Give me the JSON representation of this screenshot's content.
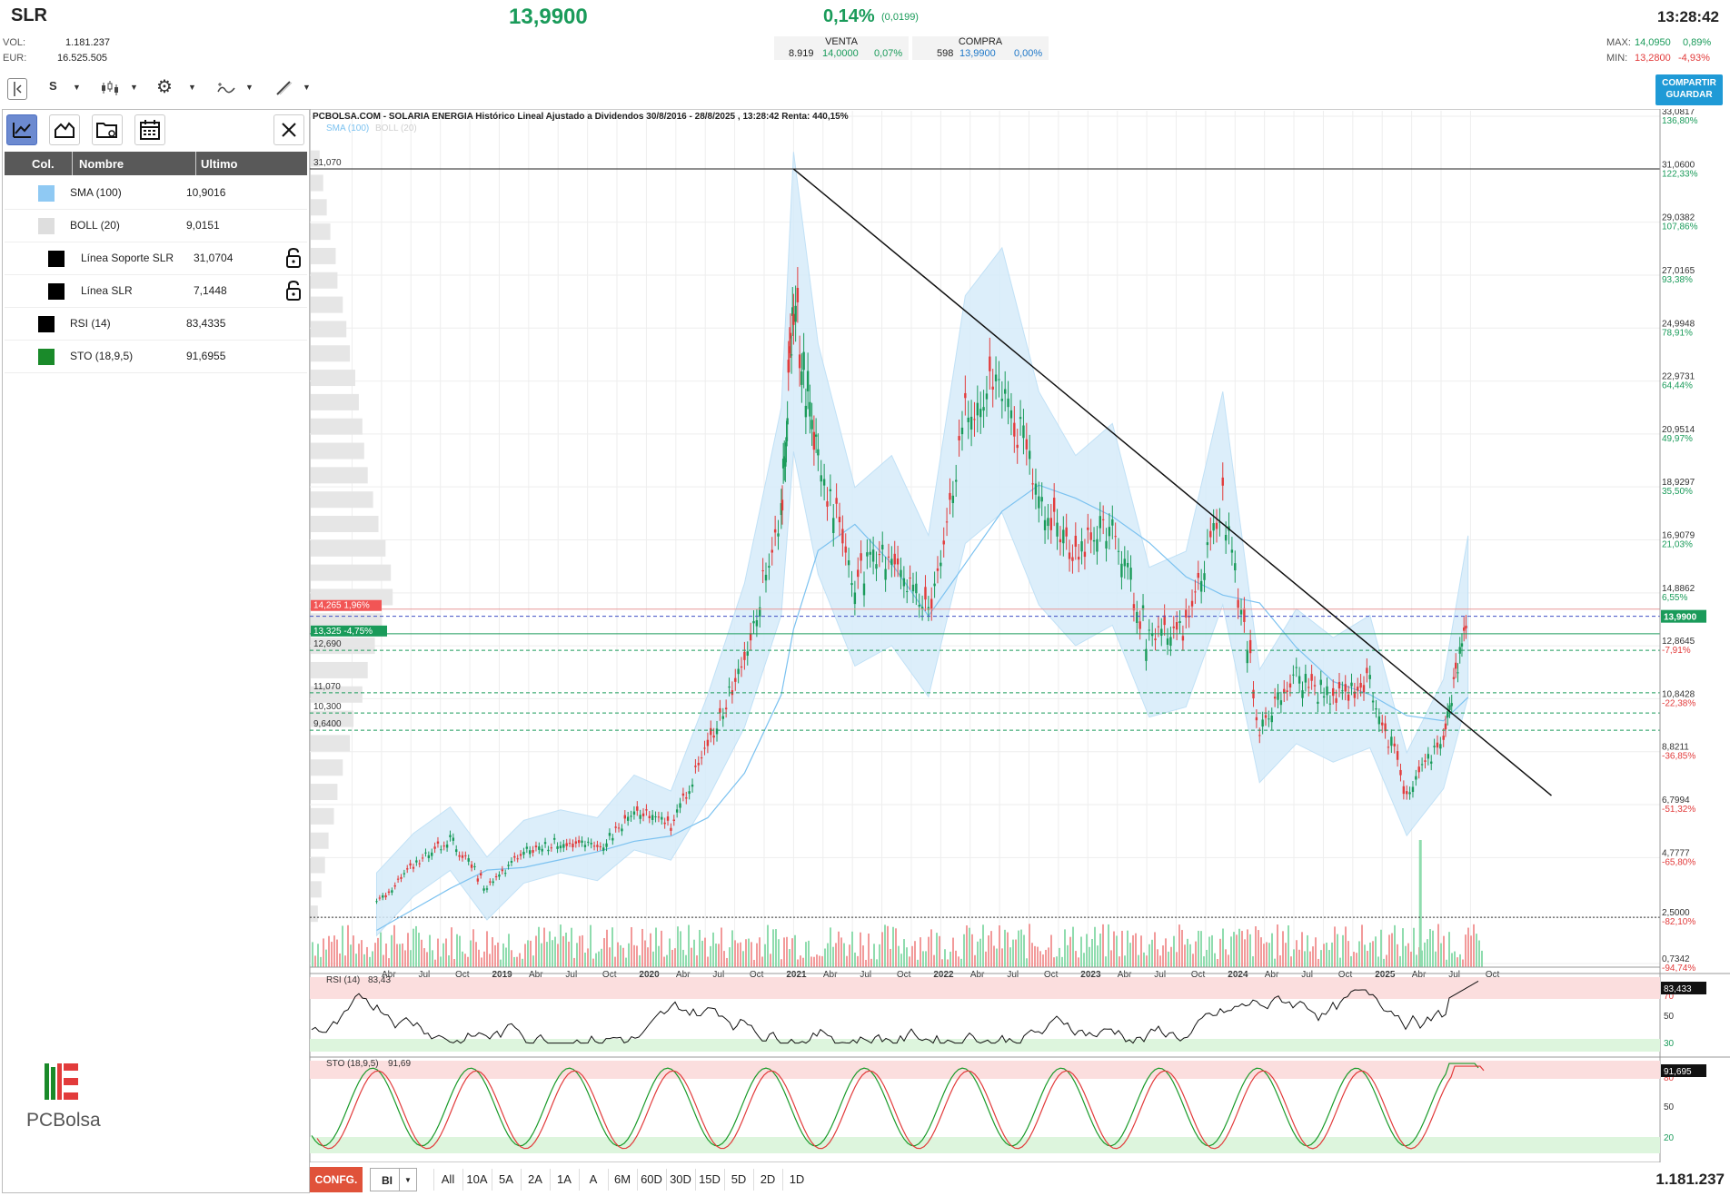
{
  "header": {
    "ticker": "SLR",
    "vol_label": "VOL:",
    "vol_value": "1.181.237",
    "eur_label": "EUR:",
    "eur_value": "16.525.505",
    "price": "13,9900",
    "change_pct": "0,14%",
    "change_abs": "(0,0199)",
    "clock": "13:28:42",
    "sell": {
      "title": "VENTA",
      "qty": "8.919",
      "price": "14,0000",
      "pct": "0,07%"
    },
    "buy": {
      "title": "COMPRA",
      "qty": "598",
      "price": "13,9900",
      "pct": "0,00%"
    },
    "max_label": "MAX:",
    "max_value": "14,0950",
    "max_pct": "0,89%",
    "min_label": "MIN:",
    "min_value": "13,2800",
    "min_pct": "-4,93%"
  },
  "toolbar": {
    "series_label": "S",
    "share_line1": "COMPARTIR",
    "share_line2": "GUARDAR"
  },
  "sidebar": {
    "columns": [
      "Col.",
      "Nombre",
      "Ultimo"
    ],
    "rows": [
      {
        "name": "SMA (100)",
        "value": "10,9016",
        "color": "#8fc9f3",
        "locked": false,
        "indent": false
      },
      {
        "name": "BOLL (20)",
        "value": "9,0151",
        "color": "#dedede",
        "locked": false,
        "indent": false
      },
      {
        "name": "Línea Soporte SLR",
        "value": "31,0704",
        "color": "#000000",
        "locked": true,
        "indent": true
      },
      {
        "name": "Línea SLR",
        "value": "7,1448",
        "color": "#000000",
        "locked": true,
        "indent": true
      },
      {
        "name": "RSI (14)",
        "value": "83,4335",
        "color": "#000000",
        "locked": false,
        "indent": false
      },
      {
        "name": "STO (18,9,5)",
        "value": "91,6955",
        "color": "#1a8a2a",
        "locked": false,
        "indent": false
      }
    ],
    "logo_text": "PCBolsa"
  },
  "chart": {
    "title": "PCBOLSA.COM - SOLARIA ENERGIA Histórico Lineal Ajustado a Dividendos 30/8/2016 - 28/8/2025 , 13:28:42 Renta: 440,15%",
    "legend": [
      "SMA (100)",
      "BOLL (20)"
    ],
    "hlines": {
      "line_31": "31,070",
      "red_band": "14,265  1,96%",
      "green_band": "13,325  -4,75%",
      "l_12690": "12,690",
      "l_11070": "11,070",
      "l_10300": "10,300",
      "l_9640": "9,6400",
      "current": "13,9900"
    },
    "price_axis": [
      {
        "v": "33,0817",
        "p": "136,80%"
      },
      {
        "v": "31,0600",
        "p": "122,33%"
      },
      {
        "v": "29,0382",
        "p": "107,86%"
      },
      {
        "v": "27,0165",
        "p": "93,38%"
      },
      {
        "v": "24,9948",
        "p": "78,91%"
      },
      {
        "v": "22,9731",
        "p": "64,44%"
      },
      {
        "v": "20,9514",
        "p": "49,97%"
      },
      {
        "v": "18,9297",
        "p": "35,50%"
      },
      {
        "v": "16,9079",
        "p": "21,03%"
      },
      {
        "v": "14,8862",
        "p": "6,55%"
      },
      {
        "v": "12,8645",
        "p": "-7,91%"
      },
      {
        "v": "10,8428",
        "p": "-22,38%"
      },
      {
        "v": "8,8211",
        "p": "-36,85%"
      },
      {
        "v": "6,7994",
        "p": "-51,32%"
      },
      {
        "v": "4,7777",
        "p": "-65,80%"
      },
      {
        "v": "2,5000",
        "p": "-82,10%"
      },
      {
        "v": "0,7342",
        "p": "-94,74%"
      }
    ],
    "x_axis": [
      "Abr",
      "Jul",
      "Oct",
      "2019",
      "Abr",
      "Jul",
      "Oct",
      "2020",
      "Abr",
      "Jul",
      "Oct",
      "2021",
      "Abr",
      "Jul",
      "Oct",
      "2022",
      "Abr",
      "Jul",
      "Oct",
      "2023",
      "Abr",
      "Jul",
      "Oct",
      "2024",
      "Abr",
      "Jul",
      "Oct",
      "2025",
      "Abr",
      "Jul",
      "Oct"
    ],
    "rsi": {
      "label": "RSI (14)",
      "value": "83,43",
      "badge": "83,433",
      "levels": [
        "70",
        "50",
        "30"
      ]
    },
    "sto": {
      "label": "STO (18,9,5)",
      "value": "91,69",
      "badge": "91,695",
      "levels": [
        "80",
        "50",
        "20"
      ]
    }
  },
  "chart_data": {
    "type": "line",
    "title": "PCBOLSA.COM - SOLARIA ENERGIA Histórico Lineal Ajustado a Dividendos 30/8/2016 - 28/8/2025 , 13:28:42 Renta: 440,15%",
    "x": [
      "2018-03",
      "2018-06",
      "2018-09",
      "2018-12",
      "2019-03",
      "2019-06",
      "2019-09",
      "2019-12",
      "2020-03",
      "2020-06",
      "2020-09",
      "2020-12",
      "2021-01",
      "2021-03",
      "2021-06",
      "2021-09",
      "2021-12",
      "2022-03",
      "2022-06",
      "2022-09",
      "2022-12",
      "2023-03",
      "2023-06",
      "2023-09",
      "2023-12",
      "2024-03",
      "2024-06",
      "2024-09",
      "2024-12",
      "2025-03",
      "2025-06",
      "2025-08"
    ],
    "series": [
      {
        "name": "SLR",
        "values": [
          3.0,
          4.5,
          5.5,
          3.6,
          5.0,
          5.4,
          5.1,
          6.5,
          6.0,
          9.0,
          12.5,
          18.0,
          26.0,
          20.0,
          15.5,
          16.5,
          14.0,
          21.5,
          23.0,
          18.5,
          16.5,
          17.5,
          13.0,
          13.5,
          18.5,
          9.8,
          11.7,
          10.8,
          11.5,
          7.2,
          9.5,
          13.99
        ]
      },
      {
        "name": "SMA (100)",
        "values": [
          2.0,
          2.8,
          3.6,
          4.3,
          4.4,
          4.7,
          5.0,
          5.4,
          5.6,
          6.3,
          8.0,
          11.0,
          13.5,
          16.5,
          17.5,
          16.0,
          14.0,
          16.0,
          18.0,
          19.0,
          18.5,
          17.8,
          16.8,
          15.5,
          14.8,
          14.5,
          12.8,
          11.5,
          11.0,
          10.2,
          10.0,
          10.9
        ]
      }
    ],
    "ylim": [
      0.7342,
      33.0817
    ],
    "rsi_last": 83.43,
    "sto_last": 91.69
  },
  "footer": {
    "config_label": "CONFG.",
    "type_label": "BI",
    "timeframes": [
      "All",
      "10A",
      "5A",
      "2A",
      "1A",
      "A",
      "6M",
      "60D",
      "30D",
      "15D",
      "5D",
      "2D",
      "1D"
    ],
    "volume": "1.181.237"
  }
}
